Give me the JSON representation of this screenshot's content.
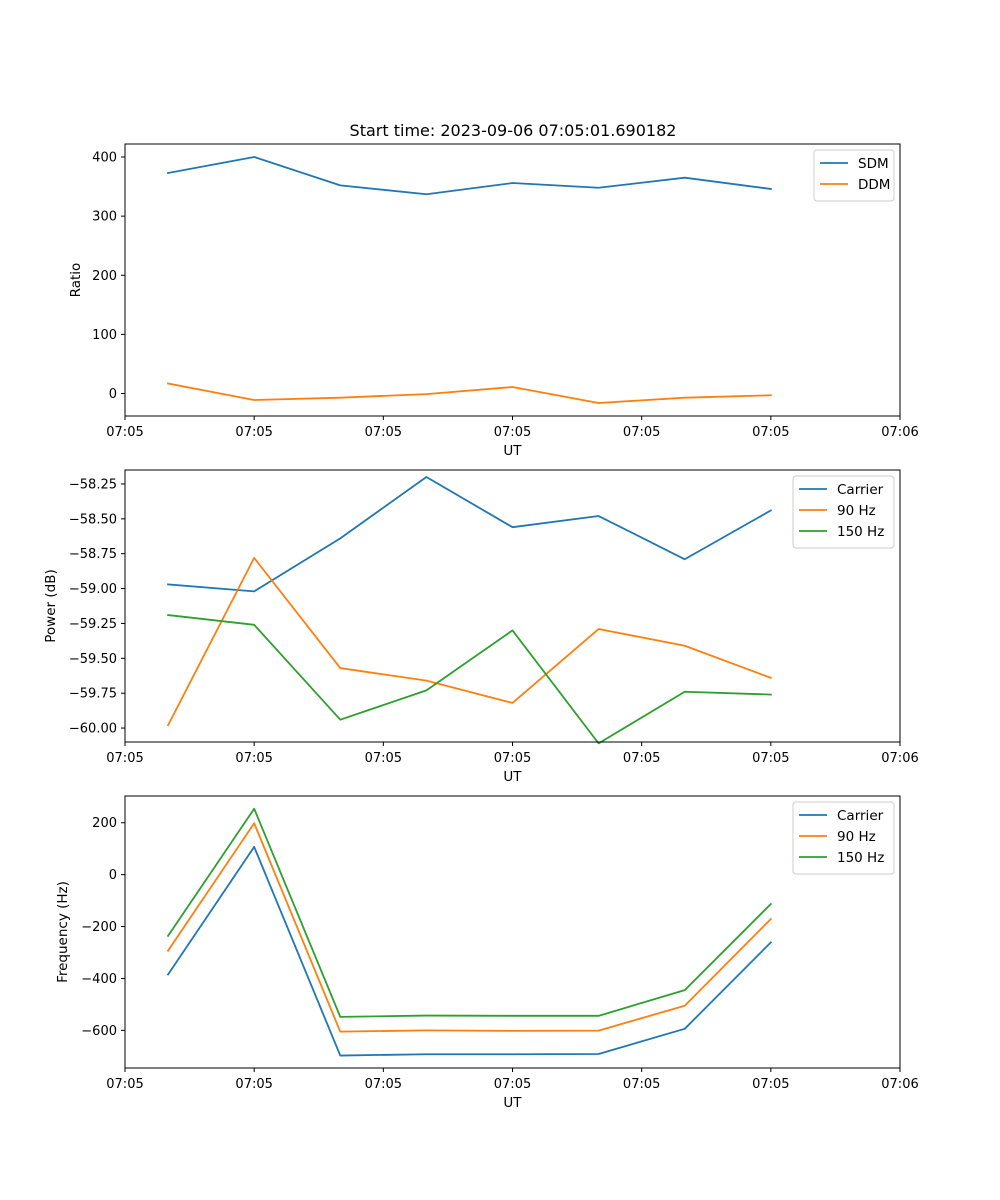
{
  "chart_data": [
    {
      "type": "line",
      "title": "Start time: 2023-09-06 07:05:01.690182",
      "xlabel": "UT",
      "ylabel": "Ratio",
      "xlim": [
        0,
        9
      ],
      "ylim": [
        -38,
        422
      ],
      "x": [
        0.5,
        1.5,
        2.5,
        3.5,
        4.5,
        5.5,
        6.5,
        7.5
      ],
      "x_ticks": [
        0,
        1.5,
        3,
        4.5,
        6,
        7.5,
        9
      ],
      "x_tick_labels": [
        "07:05",
        "07:05",
        "07:05",
        "07:05",
        "07:05",
        "07:05",
        "07:06"
      ],
      "y_ticks": [
        0,
        100,
        200,
        300,
        400
      ],
      "y_tick_labels": [
        "0",
        "100",
        "200",
        "300",
        "400"
      ],
      "legend_position": "top-right",
      "series": [
        {
          "name": "SDM",
          "color": "#1f77b4",
          "values": [
            373,
            400,
            352,
            337,
            356,
            348,
            365,
            346
          ]
        },
        {
          "name": "DDM",
          "color": "#ff7f0e",
          "values": [
            17,
            -11,
            -7,
            -1,
            11,
            -16,
            -7,
            -3
          ]
        }
      ]
    },
    {
      "type": "line",
      "title": "",
      "xlabel": "UT",
      "ylabel": "Power (dB)",
      "xlim": [
        0,
        9
      ],
      "ylim": [
        -60.1,
        -58.15
      ],
      "x": [
        0.5,
        1.5,
        2.5,
        3.5,
        4.5,
        5.5,
        6.5,
        7.5
      ],
      "x_ticks": [
        0,
        1.5,
        3,
        4.5,
        6,
        7.5,
        9
      ],
      "x_tick_labels": [
        "07:05",
        "07:05",
        "07:05",
        "07:05",
        "07:05",
        "07:05",
        "07:06"
      ],
      "y_ticks": [
        -58.25,
        -58.5,
        -58.75,
        -59.0,
        -59.25,
        -59.5,
        -59.75,
        -60.0
      ],
      "y_tick_labels": [
        "−58.25",
        "−58.50",
        "−58.75",
        "−59.00",
        "−59.25",
        "−59.50",
        "−59.75",
        "−60.00"
      ],
      "legend_position": "top-right",
      "series": [
        {
          "name": "Carrier",
          "color": "#1f77b4",
          "values": [
            -58.97,
            -59.02,
            -58.64,
            -58.2,
            -58.56,
            -58.48,
            -58.79,
            -58.44
          ]
        },
        {
          "name": "90 Hz",
          "color": "#ff7f0e",
          "values": [
            -59.98,
            -58.78,
            -59.57,
            -59.66,
            -59.82,
            -59.29,
            -59.41,
            -59.64
          ]
        },
        {
          "name": "150 Hz",
          "color": "#2ca02c",
          "values": [
            -59.19,
            -59.26,
            -59.94,
            -59.73,
            -59.3,
            -60.11,
            -59.74,
            -59.76
          ]
        }
      ]
    },
    {
      "type": "line",
      "title": "",
      "xlabel": "UT",
      "ylabel": "Frequency (Hz)",
      "xlim": [
        0,
        9
      ],
      "ylim": [
        -745,
        303
      ],
      "x": [
        0.5,
        1.5,
        2.5,
        3.5,
        4.5,
        5.5,
        6.5,
        7.5
      ],
      "x_ticks": [
        0,
        1.5,
        3,
        4.5,
        6,
        7.5,
        9
      ],
      "x_tick_labels": [
        "07:05",
        "07:05",
        "07:05",
        "07:05",
        "07:05",
        "07:05",
        "07:06"
      ],
      "y_ticks": [
        200,
        0,
        -200,
        -400,
        -600
      ],
      "y_tick_labels": [
        "200",
        "0",
        "−200",
        "−400",
        "−600"
      ],
      "legend_position": "top-right",
      "series": [
        {
          "name": "Carrier",
          "color": "#1f77b4",
          "values": [
            -385,
            107,
            -697,
            -692,
            -692,
            -691,
            -594,
            -261
          ]
        },
        {
          "name": "90 Hz",
          "color": "#ff7f0e",
          "values": [
            -293,
            198,
            -605,
            -600,
            -602,
            -601,
            -505,
            -171
          ]
        },
        {
          "name": "150 Hz",
          "color": "#2ca02c",
          "values": [
            -236,
            254,
            -548,
            -543,
            -544,
            -544,
            -445,
            -113
          ]
        }
      ]
    }
  ]
}
